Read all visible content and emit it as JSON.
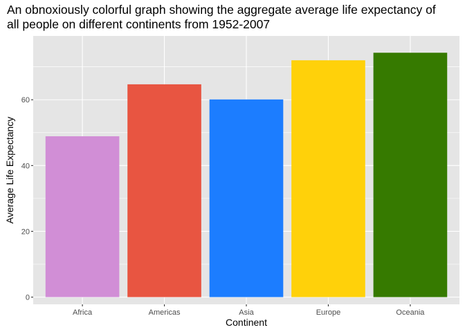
{
  "chart_data": {
    "type": "bar",
    "title_lines": [
      "An obnoxiously colorful graph showing the aggregate average life expectancy of",
      "all people on different continents from 1952-2007"
    ],
    "xlabel": "Continent",
    "ylabel": "Average Life Expectancy",
    "categories": [
      "Africa",
      "Americas",
      "Asia",
      "Europe",
      "Oceania"
    ],
    "values": [
      48.9,
      64.7,
      60.1,
      72.0,
      74.3
    ],
    "colors": [
      "#d18ed6",
      "#e85541",
      "#1c7dff",
      "#ffd10a",
      "#367a00"
    ],
    "ylim": [
      -2.2,
      79.4
    ],
    "yticks": [
      0,
      20,
      40,
      60
    ],
    "ytick_labels": [
      "0",
      "20",
      "40",
      "60"
    ],
    "grid": true,
    "legend": "none",
    "panel_color": "#e5e5e5",
    "grid_color": "#ffffff"
  }
}
